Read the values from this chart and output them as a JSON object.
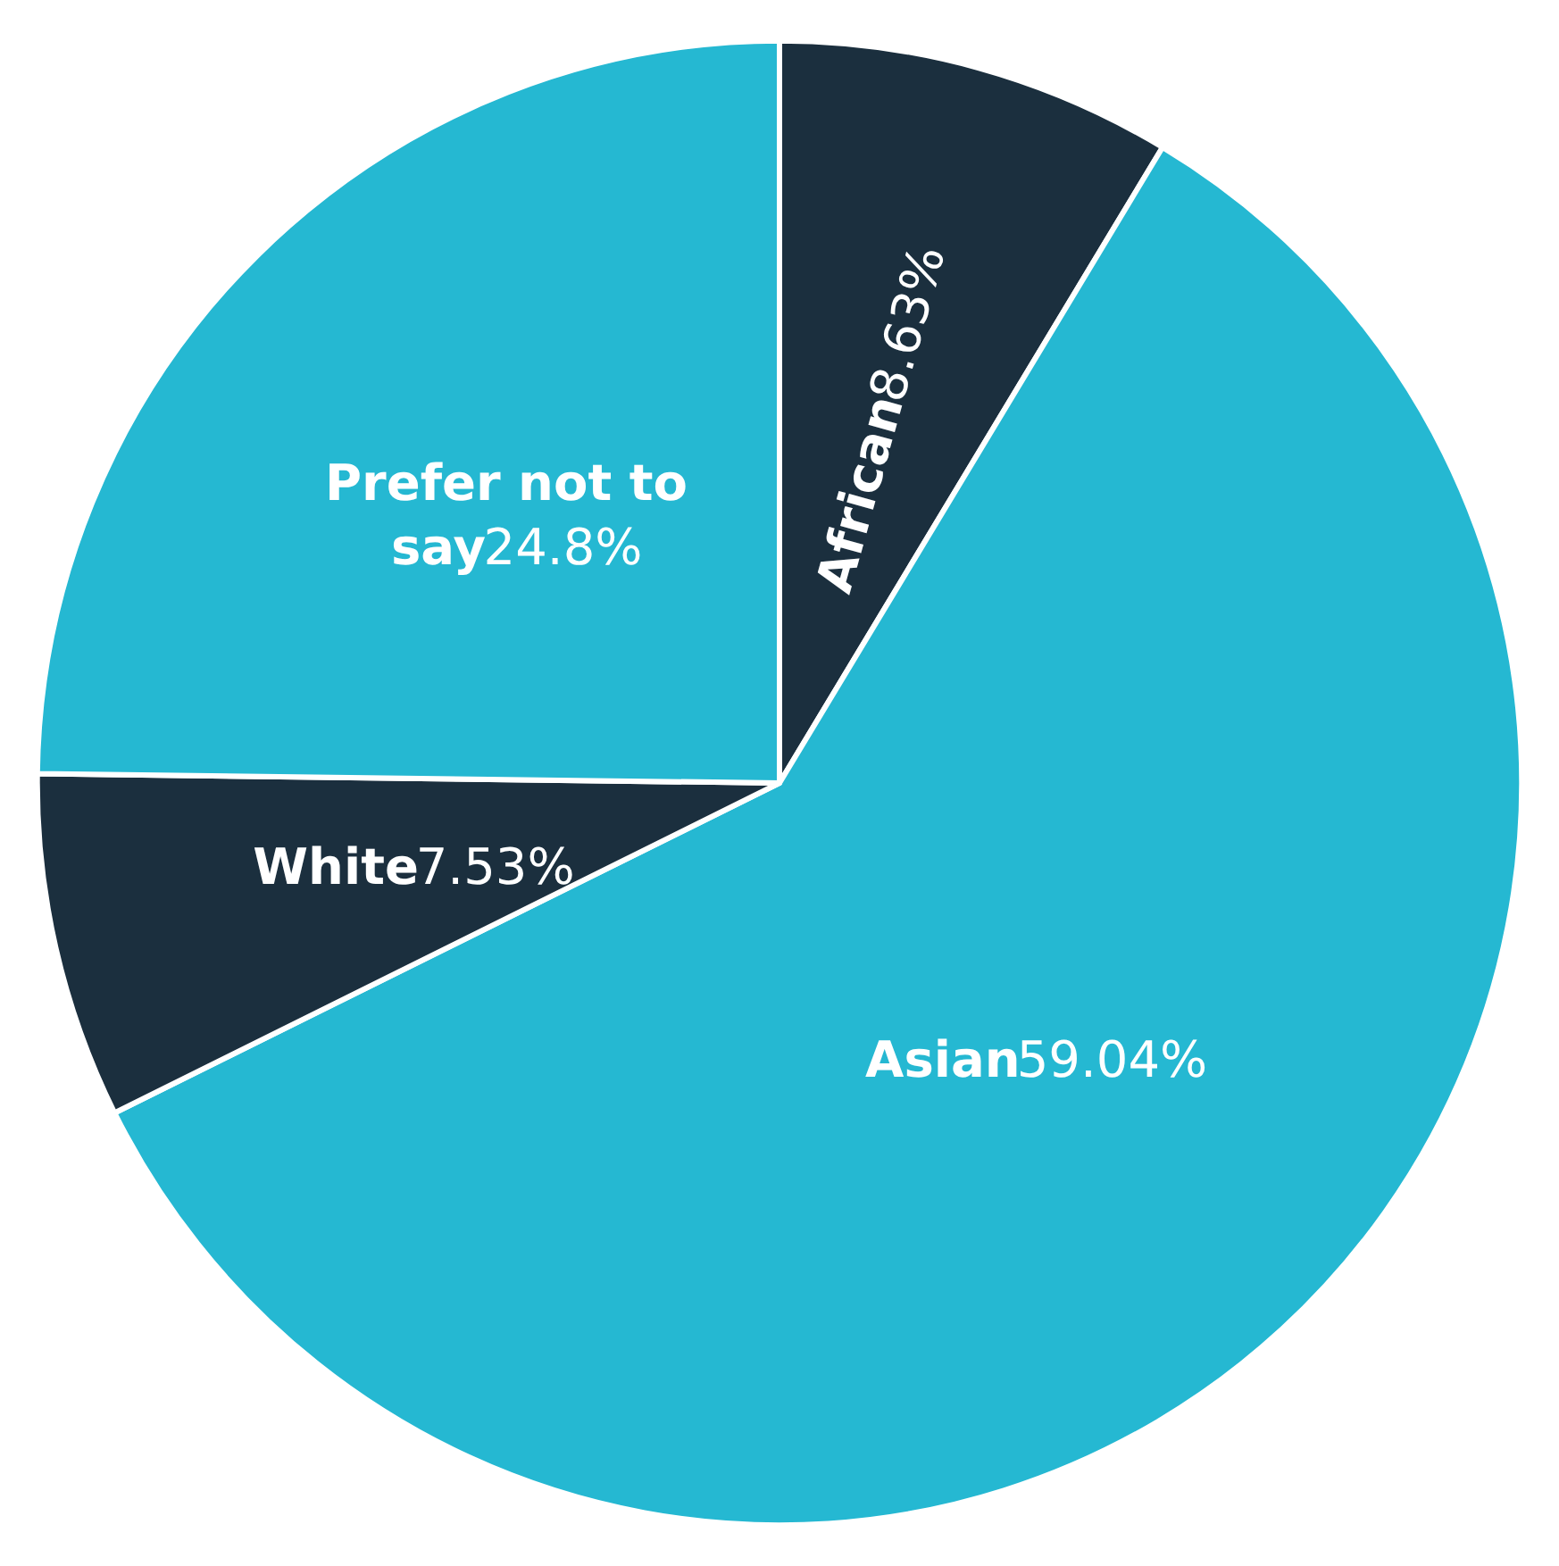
{
  "chart_data": {
    "type": "pie",
    "categories": [
      "African",
      "Asian",
      "White",
      "Prefer not to say"
    ],
    "values": [
      8.63,
      59.04,
      7.53,
      24.8
    ],
    "value_labels": [
      "8.63%",
      "59.04%",
      "7.53%",
      "24.8%"
    ],
    "colors": [
      "#1b2f3e",
      "#25b8d2",
      "#1b2f3e",
      "#25b8d2"
    ]
  }
}
